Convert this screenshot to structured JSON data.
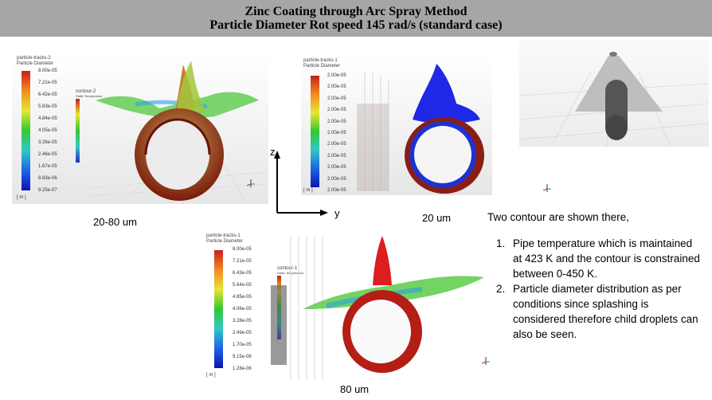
{
  "header": {
    "title_line1": "Zinc Coating through Arc Spray Method",
    "title_line2": "Particle Diameter Rot speed 145 rad/s (standard case)"
  },
  "panel1": {
    "legend_title": "particle-tracks-2",
    "legend_subtitle": "Particle Diameter",
    "ticks": [
      "8.00e-05",
      "7.21e-05",
      "6.42e-05",
      "5.63e-05",
      "4.84e-05",
      "4.05e-05",
      "3.26e-05",
      "2.46e-05",
      "1.67e-05",
      "8.83e-06",
      "9.25e-07"
    ],
    "unit": "[ m ]",
    "contour_title": "contour-2",
    "contour_subtitle": "Static Temperature",
    "caption": "20-80 um"
  },
  "panel2": {
    "legend_title": "particle-tracks-1",
    "legend_subtitle": "Particle Diameter",
    "ticks": [
      "2.00e-05",
      "2.00e-05",
      "2.00e-05",
      "2.00e-05",
      "2.00e-05",
      "2.00e-05",
      "2.00e-05",
      "2.00e-05",
      "2.00e-05",
      "2.00e-05",
      "2.00e-05"
    ],
    "unit": "[ m ]",
    "caption": "20 um"
  },
  "panel3": {
    "legend_title": "particle-tracks-1",
    "legend_subtitle": "Particle Diameter",
    "ticks": [
      "8.00e-05",
      "7.21e-05",
      "6.43e-05",
      "5.64e-05",
      "4.85e-05",
      "4.06e-05",
      "3.28e-05",
      "2.49e-05",
      "1.70e-05",
      "9.15e-06",
      "1.28e-06"
    ],
    "unit": "[ m ]",
    "contour_title": "contour-1",
    "contour_subtitle": "Static Temperature",
    "caption": "80 um"
  },
  "axes": {
    "z_label": "z",
    "y_label": "y"
  },
  "notes": {
    "intro": "Two contour are shown there,",
    "items": [
      "Pipe temperature which is maintained at 423 K and the contour is constrained between 0-450 K.",
      "Particle diameter distribution as per conditions since splashing is considered therefore child droplets can also be seen."
    ]
  }
}
